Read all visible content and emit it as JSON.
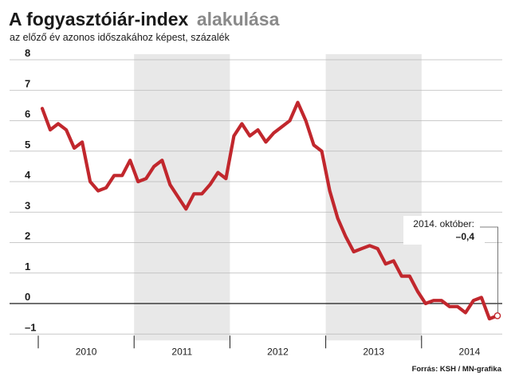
{
  "chart_data": {
    "type": "line",
    "title": "A fogyasztóiár-index",
    "title_accent": "alakulása",
    "subtitle": "az előző év azonos időszakához képest, százalék",
    "source": "Forrás: KSH / MN-grafika",
    "ylim": [
      -1,
      8
    ],
    "yticks": [
      "8",
      "7",
      "6",
      "5",
      "4",
      "3",
      "2",
      "1",
      "0",
      "–1"
    ],
    "ytick_values": [
      8,
      7,
      6,
      5,
      4,
      3,
      2,
      1,
      0,
      -1
    ],
    "grid": true,
    "shaded_years": [
      "2011",
      "2013"
    ],
    "years": [
      "2010",
      "2011",
      "2012",
      "2013",
      "2014"
    ],
    "line_color": "#c1272d",
    "shade_color": "#e8e8e8",
    "series": [
      {
        "values": [
          6.4,
          5.7,
          5.9,
          5.7,
          5.1,
          5.3,
          4.0,
          3.7,
          3.8,
          4.2,
          4.2,
          4.7,
          4.0,
          4.1,
          4.5,
          4.7,
          3.9,
          3.5,
          3.1,
          3.6,
          3.6,
          3.9,
          4.3,
          4.1,
          5.5,
          5.9,
          5.5,
          5.7,
          5.3,
          5.6,
          5.8,
          6.0,
          6.6,
          6.0,
          5.2,
          5.0,
          3.7,
          2.8,
          2.2,
          1.7,
          1.8,
          1.9,
          1.8,
          1.3,
          1.4,
          0.9,
          0.9,
          0.4,
          0.0,
          0.1,
          0.1,
          -0.1,
          -0.1,
          -0.3,
          0.1,
          0.2,
          -0.5,
          -0.4
        ]
      }
    ],
    "annotation": {
      "label": "2014. október:",
      "value": "–0,4"
    }
  }
}
